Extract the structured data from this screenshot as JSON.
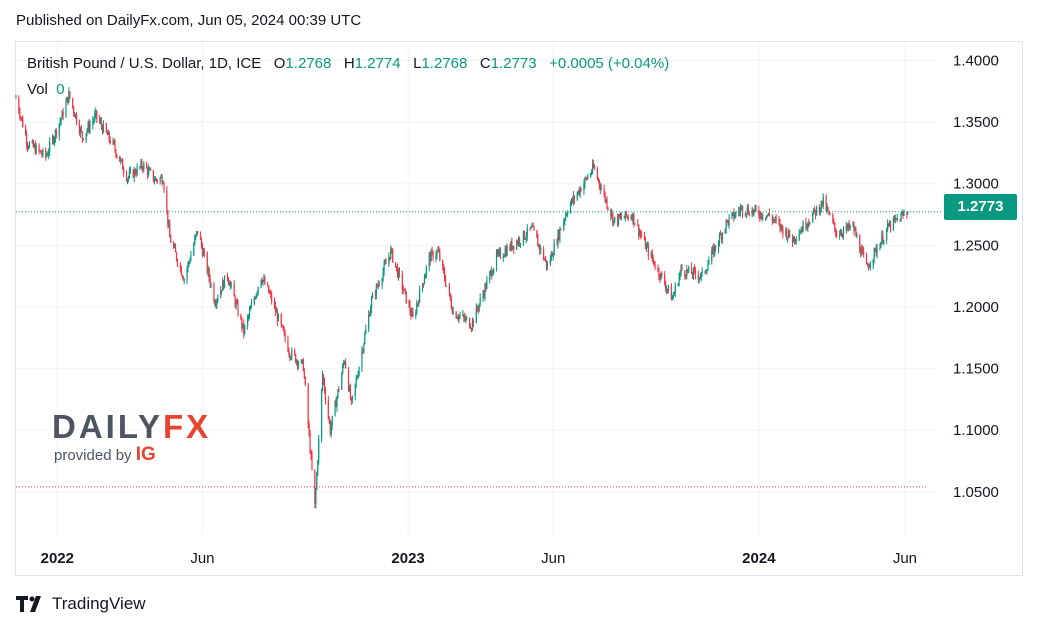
{
  "header": {
    "published": "Published on DailyFx.com, Jun 05, 2024 00:39 UTC"
  },
  "legend": {
    "symbol": "British Pound / U.S. Dollar, 1D, ICE",
    "o_label": "O",
    "o_value": "1.2768",
    "h_label": "H",
    "h_value": "1.2774",
    "l_label": "L",
    "l_value": "1.2768",
    "c_label": "C",
    "c_value": "1.2773",
    "change": "+0.0005 (+0.04%)",
    "vol_label": "Vol",
    "vol_value": "0"
  },
  "price_tag": "1.2773",
  "logo": {
    "word_main": "DAILY",
    "word_accent": "FX",
    "provided_by": "provided by",
    "ig": "IG"
  },
  "footer": {
    "brand": "TradingView"
  },
  "colors": {
    "up": "#089981",
    "down": "#f23645",
    "accent": "#e8432e",
    "grid": "#f0f3fa"
  },
  "chart_data": {
    "type": "candlestick",
    "title": "",
    "xlabel": "",
    "ylabel": "",
    "ylim": [
      1.015,
      1.415
    ],
    "y_ticks": [
      "1.4000",
      "1.3500",
      "1.3000",
      "1.2500",
      "1.2000",
      "1.1500",
      "1.1000",
      "1.0500"
    ],
    "x_ticks": [
      {
        "label": "2022",
        "date": "2022-01-01",
        "bold": true
      },
      {
        "label": "Jun",
        "date": "2022-06-01",
        "bold": false
      },
      {
        "label": "2023",
        "date": "2023-01-01",
        "bold": true
      },
      {
        "label": "Jun",
        "date": "2023-06-01",
        "bold": false
      },
      {
        "label": "2024",
        "date": "2024-01-01",
        "bold": true
      },
      {
        "label": "Jun",
        "date": "2024-06-01",
        "bold": false
      }
    ],
    "x_range": [
      "2021-11-19",
      "2024-06-25"
    ],
    "last_price": 1.2773,
    "low_line": 1.054,
    "path": [
      [
        "2021-11-19",
        1.37
      ],
      [
        "2021-12-01",
        1.333
      ],
      [
        "2021-12-20",
        1.322
      ],
      [
        "2022-01-06",
        1.355
      ],
      [
        "2022-01-13",
        1.372
      ],
      [
        "2022-01-27",
        1.338
      ],
      [
        "2022-02-10",
        1.355
      ],
      [
        "2022-03-01",
        1.33
      ],
      [
        "2022-03-15",
        1.305
      ],
      [
        "2022-03-31",
        1.315
      ],
      [
        "2022-04-13",
        1.303
      ],
      [
        "2022-04-21",
        1.305
      ],
      [
        "2022-04-28",
        1.256
      ],
      [
        "2022-05-13",
        1.223
      ],
      [
        "2022-05-27",
        1.262
      ],
      [
        "2022-06-14",
        1.205
      ],
      [
        "2022-06-27",
        1.226
      ],
      [
        "2022-07-14",
        1.18
      ],
      [
        "2022-08-01",
        1.225
      ],
      [
        "2022-08-10",
        1.21
      ],
      [
        "2022-08-31",
        1.163
      ],
      [
        "2022-09-14",
        1.152
      ],
      [
        "2022-09-26",
        1.038
      ],
      [
        "2022-10-04",
        1.145
      ],
      [
        "2022-10-12",
        1.1
      ],
      [
        "2022-10-27",
        1.158
      ],
      [
        "2022-11-03",
        1.12
      ],
      [
        "2022-11-24",
        1.205
      ],
      [
        "2022-12-14",
        1.245
      ],
      [
        "2023-01-06",
        1.19
      ],
      [
        "2023-01-23",
        1.24
      ],
      [
        "2023-02-01",
        1.245
      ],
      [
        "2023-02-17",
        1.196
      ],
      [
        "2023-03-08",
        1.186
      ],
      [
        "2023-04-03",
        1.24
      ],
      [
        "2023-05-10",
        1.263
      ],
      [
        "2023-05-26",
        1.233
      ],
      [
        "2023-06-16",
        1.28
      ],
      [
        "2023-07-13",
        1.313
      ],
      [
        "2023-08-03",
        1.27
      ],
      [
        "2023-08-22",
        1.275
      ],
      [
        "2023-09-06",
        1.248
      ],
      [
        "2023-10-03",
        1.207
      ],
      [
        "2023-10-12",
        1.23
      ],
      [
        "2023-11-03",
        1.225
      ],
      [
        "2023-11-28",
        1.268
      ],
      [
        "2023-12-14",
        1.28
      ],
      [
        "2024-01-12",
        1.274
      ],
      [
        "2024-02-05",
        1.255
      ],
      [
        "2024-03-08",
        1.285
      ],
      [
        "2024-03-22",
        1.26
      ],
      [
        "2024-04-08",
        1.265
      ],
      [
        "2024-04-22",
        1.232
      ],
      [
        "2024-05-15",
        1.265
      ],
      [
        "2024-06-04",
        1.2773
      ]
    ]
  }
}
